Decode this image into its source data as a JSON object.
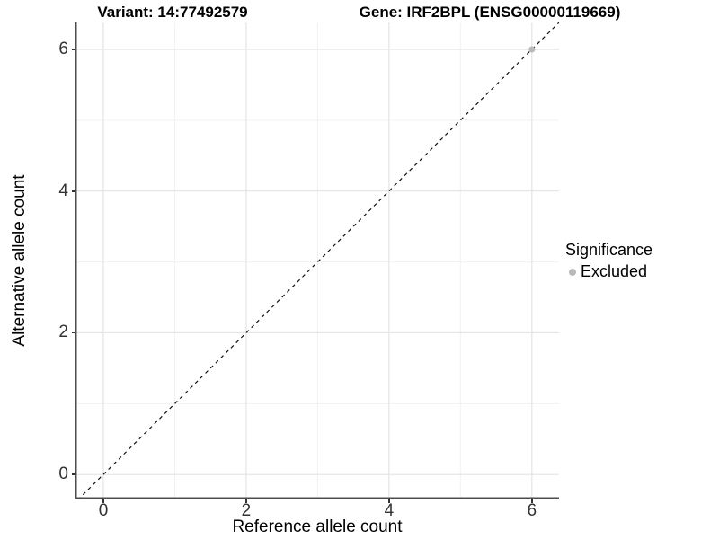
{
  "titles": {
    "left": "Variant: 14:77492579",
    "right": "Gene: IRF2BPL (ENSG00000119669)"
  },
  "chart_data": {
    "type": "scatter",
    "xlabel": "Reference allele count",
    "ylabel": "Alternative allele count",
    "xlim": [
      -0.39,
      6.38
    ],
    "ylim": [
      -0.34,
      6.38
    ],
    "x_ticks": [
      0,
      2,
      4,
      6
    ],
    "y_ticks": [
      0,
      2,
      4,
      6
    ],
    "x_minor_ticks": [
      1,
      3,
      5
    ],
    "y_minor_ticks": [
      1,
      3,
      5
    ],
    "grid": true,
    "points": [
      {
        "x": 6,
        "y": 6,
        "significance": "Excluded",
        "color": "#b9b9b9"
      }
    ],
    "reference_line": {
      "slope": 1,
      "intercept": 0,
      "style": "dashed",
      "color": "#111111"
    },
    "legend": {
      "title": "Significance",
      "position": "right",
      "entries": [
        {
          "label": "Excluded",
          "color": "#b9b9b9"
        }
      ]
    },
    "colors": {
      "major_grid": "#e4e4e4",
      "minor_grid": "#f1f1f1",
      "axis_line": "#4d4d4d",
      "tick_text": "#333333"
    }
  }
}
